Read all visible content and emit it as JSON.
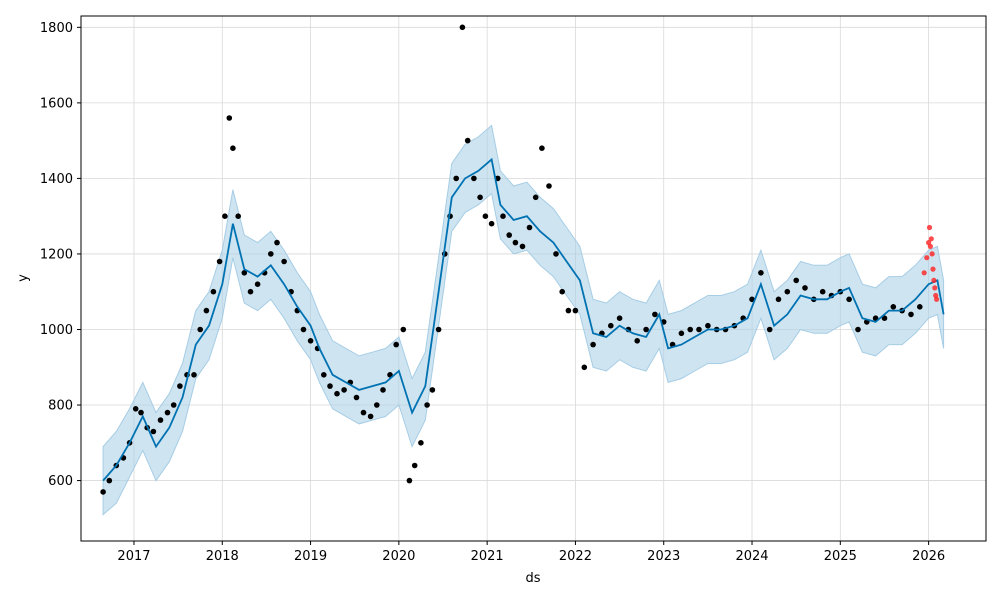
{
  "chart_data": {
    "type": "line",
    "title": "",
    "xlabel": "ds",
    "ylabel": "y",
    "xlim": [
      2016.4,
      2026.65
    ],
    "ylim": [
      440,
      1830
    ],
    "x_ticks": [
      2017,
      2018,
      2019,
      2020,
      2021,
      2022,
      2023,
      2024,
      2025,
      2026
    ],
    "x_tick_labels": [
      "2017",
      "2018",
      "2019",
      "2020",
      "2021",
      "2022",
      "2023",
      "2024",
      "2025",
      "2026"
    ],
    "y_ticks": [
      600,
      800,
      1000,
      1200,
      1400,
      1600,
      1800
    ],
    "y_tick_labels": [
      "600",
      "800",
      "1000",
      "1200",
      "1400",
      "1600",
      "1800"
    ],
    "grid": true,
    "colors": {
      "forecast": "#0072b2",
      "band": "#a6cde5",
      "observed": "#000000",
      "recent": "#ff2020"
    },
    "forecast": {
      "x": [
        2016.65,
        2016.8,
        2016.95,
        2017.1,
        2017.25,
        2017.4,
        2017.55,
        2017.7,
        2017.85,
        2018.0,
        2018.12,
        2018.25,
        2018.4,
        2018.55,
        2018.7,
        2018.85,
        2019.0,
        2019.1,
        2019.25,
        2019.4,
        2019.55,
        2019.7,
        2019.85,
        2020.0,
        2020.15,
        2020.3,
        2020.45,
        2020.6,
        2020.75,
        2020.9,
        2021.05,
        2021.15,
        2021.3,
        2021.45,
        2021.6,
        2021.75,
        2021.9,
        2022.05,
        2022.2,
        2022.35,
        2022.5,
        2022.65,
        2022.8,
        2022.95,
        2023.05,
        2023.2,
        2023.35,
        2023.5,
        2023.65,
        2023.8,
        2023.95,
        2024.1,
        2024.25,
        2024.4,
        2024.55,
        2024.7,
        2024.85,
        2025.0,
        2025.1,
        2025.25,
        2025.4,
        2025.55,
        2025.7,
        2025.85,
        2026.0,
        2026.1,
        2026.17
      ],
      "y": [
        600,
        640,
        700,
        770,
        690,
        740,
        820,
        960,
        1010,
        1120,
        1280,
        1160,
        1140,
        1170,
        1120,
        1060,
        1010,
        950,
        880,
        860,
        840,
        850,
        860,
        890,
        780,
        850,
        1100,
        1350,
        1400,
        1420,
        1450,
        1330,
        1290,
        1300,
        1260,
        1230,
        1180,
        1130,
        990,
        980,
        1010,
        990,
        980,
        1040,
        950,
        960,
        980,
        1000,
        1000,
        1010,
        1030,
        1120,
        1010,
        1040,
        1090,
        1080,
        1080,
        1100,
        1110,
        1030,
        1020,
        1050,
        1050,
        1080,
        1120,
        1130,
        1040
      ]
    },
    "interval": {
      "lower": [
        510,
        540,
        610,
        680,
        600,
        650,
        730,
        870,
        920,
        1030,
        1190,
        1070,
        1050,
        1080,
        1030,
        970,
        920,
        860,
        790,
        770,
        750,
        760,
        770,
        800,
        690,
        760,
        1010,
        1260,
        1310,
        1330,
        1360,
        1240,
        1200,
        1210,
        1170,
        1140,
        1090,
        1040,
        900,
        890,
        920,
        900,
        890,
        950,
        860,
        870,
        890,
        910,
        910,
        920,
        940,
        1030,
        920,
        950,
        1000,
        990,
        990,
        1010,
        1020,
        940,
        930,
        960,
        960,
        990,
        1030,
        1040,
        950
      ],
      "upper": [
        690,
        730,
        790,
        860,
        780,
        830,
        910,
        1050,
        1100,
        1210,
        1370,
        1250,
        1230,
        1260,
        1210,
        1150,
        1100,
        1040,
        970,
        950,
        930,
        940,
        950,
        980,
        870,
        940,
        1190,
        1440,
        1490,
        1510,
        1540,
        1420,
        1380,
        1390,
        1350,
        1320,
        1270,
        1220,
        1080,
        1070,
        1100,
        1080,
        1070,
        1130,
        1040,
        1050,
        1070,
        1090,
        1090,
        1100,
        1120,
        1210,
        1100,
        1130,
        1180,
        1170,
        1170,
        1190,
        1200,
        1120,
        1110,
        1140,
        1140,
        1170,
        1210,
        1220,
        1130
      ]
    },
    "observed": {
      "x": [
        2016.65,
        2016.72,
        2016.8,
        2016.88,
        2016.95,
        2017.02,
        2017.08,
        2017.15,
        2017.22,
        2017.3,
        2017.38,
        2017.45,
        2017.52,
        2017.6,
        2017.68,
        2017.75,
        2017.82,
        2017.9,
        2017.97,
        2018.03,
        2018.08,
        2018.12,
        2018.18,
        2018.25,
        2018.32,
        2018.4,
        2018.48,
        2018.55,
        2018.62,
        2018.7,
        2018.78,
        2018.85,
        2018.92,
        2019.0,
        2019.08,
        2019.15,
        2019.22,
        2019.3,
        2019.38,
        2019.45,
        2019.52,
        2019.6,
        2019.68,
        2019.75,
        2019.82,
        2019.9,
        2019.97,
        2020.05,
        2020.12,
        2020.18,
        2020.25,
        2020.32,
        2020.38,
        2020.45,
        2020.52,
        2020.58,
        2020.65,
        2020.72,
        2020.78,
        2020.85,
        2020.92,
        2020.98,
        2021.05,
        2021.12,
        2021.18,
        2021.25,
        2021.32,
        2021.4,
        2021.48,
        2021.55,
        2021.62,
        2021.7,
        2021.78,
        2021.85,
        2021.92,
        2022.0,
        2022.1,
        2022.2,
        2022.3,
        2022.4,
        2022.5,
        2022.6,
        2022.7,
        2022.8,
        2022.9,
        2023.0,
        2023.1,
        2023.2,
        2023.3,
        2023.4,
        2023.5,
        2023.6,
        2023.7,
        2023.8,
        2023.9,
        2024.0,
        2024.1,
        2024.2,
        2024.3,
        2024.4,
        2024.5,
        2024.6,
        2024.7,
        2024.8,
        2024.9,
        2025.0,
        2025.1,
        2025.2,
        2025.3,
        2025.4,
        2025.5,
        2025.6,
        2025.7,
        2025.8,
        2025.9
      ],
      "y": [
        570,
        600,
        640,
        660,
        700,
        790,
        780,
        740,
        730,
        760,
        780,
        800,
        850,
        880,
        880,
        1000,
        1050,
        1100,
        1180,
        1300,
        1560,
        1480,
        1300,
        1150,
        1100,
        1120,
        1150,
        1200,
        1230,
        1180,
        1100,
        1050,
        1000,
        970,
        950,
        880,
        850,
        830,
        840,
        860,
        820,
        780,
        770,
        800,
        840,
        880,
        960,
        1000,
        600,
        640,
        700,
        800,
        840,
        1000,
        1200,
        1300,
        1400,
        1800,
        1500,
        1400,
        1350,
        1300,
        1280,
        1400,
        1300,
        1250,
        1230,
        1220,
        1270,
        1350,
        1480,
        1380,
        1200,
        1100,
        1050,
        1050,
        900,
        960,
        990,
        1010,
        1030,
        1000,
        970,
        1000,
        1040,
        1020,
        960,
        990,
        1000,
        1000,
        1010,
        1000,
        1000,
        1010,
        1030,
        1080,
        1150,
        1000,
        1080,
        1100,
        1130,
        1110,
        1080,
        1100,
        1090,
        1100,
        1080,
        1000,
        1020,
        1030,
        1030,
        1060,
        1050,
        1040,
        1060
      ]
    },
    "recent_observed": {
      "x": [
        2025.95,
        2025.98,
        2026.0,
        2026.01,
        2026.02,
        2026.03,
        2026.04,
        2026.05,
        2026.06,
        2026.07,
        2026.08,
        2026.09
      ],
      "y": [
        1150,
        1190,
        1230,
        1270,
        1220,
        1240,
        1200,
        1160,
        1130,
        1110,
        1090,
        1080
      ]
    }
  }
}
